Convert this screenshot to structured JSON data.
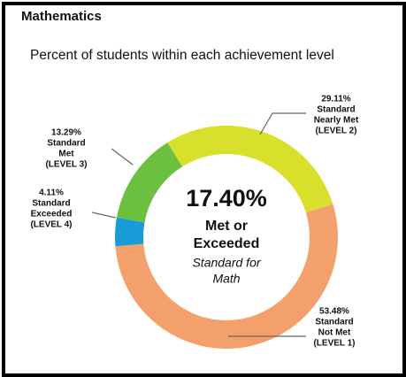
{
  "chart_data": {
    "type": "donut",
    "title": "Mathematics",
    "subtitle": "Percent of students within each achievement level",
    "start_angle": -32,
    "categories": [
      [
        "Standard",
        "Nearly Met",
        "(LEVEL 2)"
      ],
      [
        "Standard",
        "Not Met",
        "(LEVEL 1)"
      ],
      [
        "Standard",
        "Exceeded",
        "(LEVEL 4)"
      ],
      [
        "Standard",
        "Met",
        "(LEVEL 3)"
      ]
    ],
    "values": [
      29.11,
      53.48,
      4.11,
      13.29
    ],
    "value_labels": [
      "29.11%",
      "53.48%",
      "4.11%",
      "13.29%"
    ],
    "colors": [
      "#d9e02c",
      "#f4a06c",
      "#1a9ad6",
      "#6cc040"
    ],
    "center_lines": [
      "17.40%",
      "Met or",
      "Exceeded",
      "Standard for",
      "Math"
    ]
  }
}
